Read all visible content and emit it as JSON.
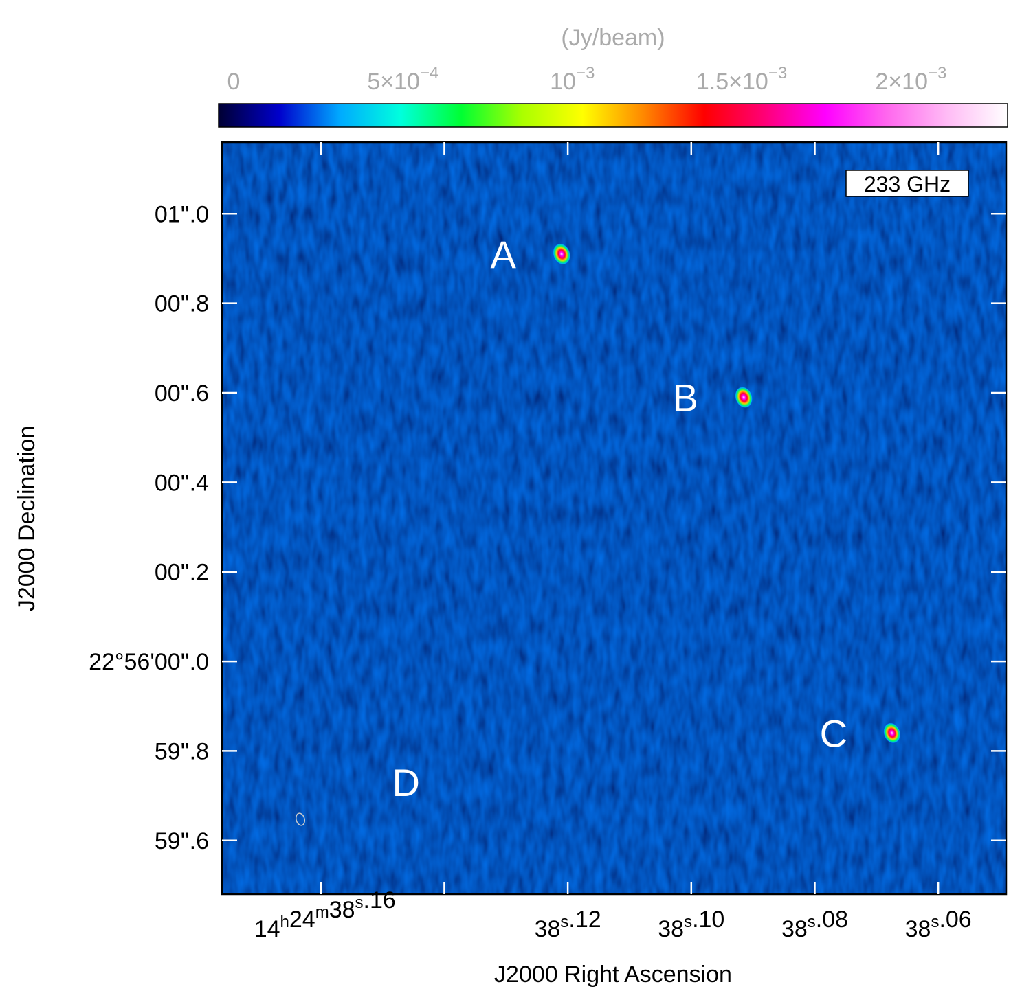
{
  "colorbar": {
    "unit_label": "(Jy/beam)",
    "ticks": [
      {
        "value": 0,
        "base": "0",
        "exp": ""
      },
      {
        "value": 0.0005,
        "base": "5×10",
        "exp": "−4"
      },
      {
        "value": 0.001,
        "base": "10",
        "exp": "−3"
      },
      {
        "value": 0.0015,
        "base": "1.5×10",
        "exp": "−3"
      },
      {
        "value": 0.002,
        "base": "2×10",
        "exp": "−3"
      }
    ],
    "range": [
      0,
      0.00233
    ],
    "colors": [
      "#000033",
      "#0000cc",
      "#00aaff",
      "#00ffdd",
      "#00ff33",
      "#aaff00",
      "#ffff00",
      "#ff8800",
      "#ff0000",
      "#ff0077",
      "#ff00ff",
      "#ff66ee",
      "#ffbbf5",
      "#ffffff"
    ]
  },
  "frequency_label": "233 GHz",
  "x_axis": {
    "label": "J2000 Right Ascension",
    "ticks": [
      {
        "value": 38.16,
        "parts": [
          [
            "14",
            "h"
          ],
          [
            "24",
            "m"
          ],
          [
            "38",
            "s"
          ],
          [
            ".16",
            ""
          ]
        ]
      },
      {
        "value": 38.12,
        "parts": [
          [
            "38",
            "s"
          ],
          [
            ".12",
            ""
          ]
        ]
      },
      {
        "value": 38.1,
        "parts": [
          [
            "38",
            "s"
          ],
          [
            ".10",
            ""
          ]
        ]
      },
      {
        "value": 38.08,
        "parts": [
          [
            "38",
            "s"
          ],
          [
            ".08",
            ""
          ]
        ]
      },
      {
        "value": 38.06,
        "parts": [
          [
            "38",
            "s"
          ],
          [
            ".06",
            ""
          ]
        ]
      }
    ],
    "minor_ticks": [
      38.14
    ],
    "range": [
      38.176,
      38.049
    ]
  },
  "y_axis": {
    "label": "J2000 Declination",
    "ticks": [
      {
        "value": 1.0,
        "text": "01''.0"
      },
      {
        "value": 0.8,
        "text": "00''.8"
      },
      {
        "value": 0.6,
        "text": "00''.6"
      },
      {
        "value": 0.4,
        "text": "00''.4"
      },
      {
        "value": 0.2,
        "text": "00''.2"
      },
      {
        "value": 0.0,
        "text": "22°56'00''.0"
      },
      {
        "value": -0.2,
        "text": "59''.8"
      },
      {
        "value": -0.4,
        "text": "59''.6"
      }
    ],
    "range": [
      -0.52,
      1.16
    ]
  },
  "sources": [
    {
      "label": "A",
      "ra": 38.121,
      "dec": 0.91,
      "peak": 0.0012
    },
    {
      "label": "B",
      "ra": 38.0915,
      "dec": 0.59,
      "peak": 0.0012
    },
    {
      "label": "C",
      "ra": 38.0675,
      "dec": -0.16,
      "peak": 0.0011
    },
    {
      "label": "D",
      "ra": 38.156,
      "dec": -0.27,
      "peak": 0
    }
  ]
}
